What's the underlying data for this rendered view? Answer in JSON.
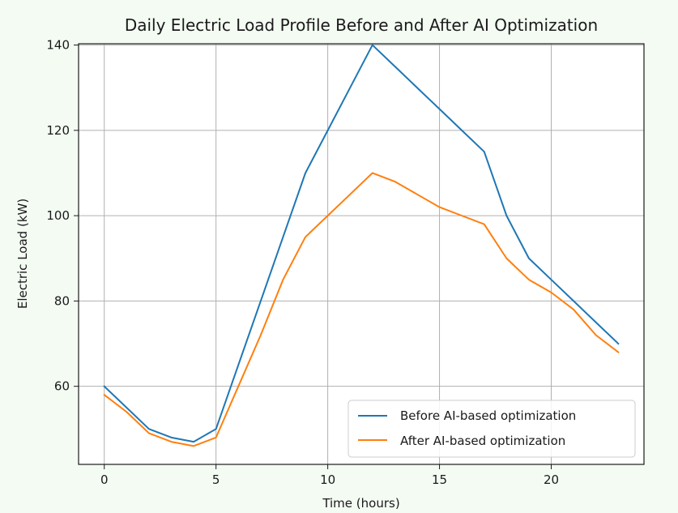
{
  "chart_data": {
    "type": "line",
    "title": "Daily Electric Load Profile Before and After AI Optimization",
    "xlabel": "Time (hours)",
    "ylabel": "Electric Load (kW)",
    "xlim": [
      -1.15,
      24.15
    ],
    "ylim": [
      41.7,
      140.3
    ],
    "xticks": [
      0,
      5,
      10,
      15,
      20
    ],
    "yticks": [
      60,
      80,
      100,
      120,
      140
    ],
    "grid": true,
    "legend_position": "lower-right",
    "x": [
      0,
      1,
      2,
      3,
      4,
      5,
      6,
      7,
      8,
      9,
      10,
      11,
      12,
      13,
      14,
      15,
      16,
      17,
      18,
      19,
      20,
      21,
      22,
      23
    ],
    "series": [
      {
        "name": "Before AI-based optimization",
        "color": "#1f77b4",
        "values": [
          60,
          55,
          50,
          48,
          47,
          50,
          65,
          80,
          95,
          110,
          120,
          130,
          140,
          135,
          130,
          125,
          120,
          115,
          100,
          90,
          85,
          80,
          75,
          70
        ]
      },
      {
        "name": "After AI-based optimization",
        "color": "#ff7f0e",
        "values": [
          58,
          54,
          49,
          47,
          46,
          48,
          60,
          72,
          85,
          95,
          100,
          105,
          110,
          108,
          105,
          102,
          100,
          98,
          90,
          85,
          82,
          78,
          72,
          68
        ]
      }
    ]
  }
}
